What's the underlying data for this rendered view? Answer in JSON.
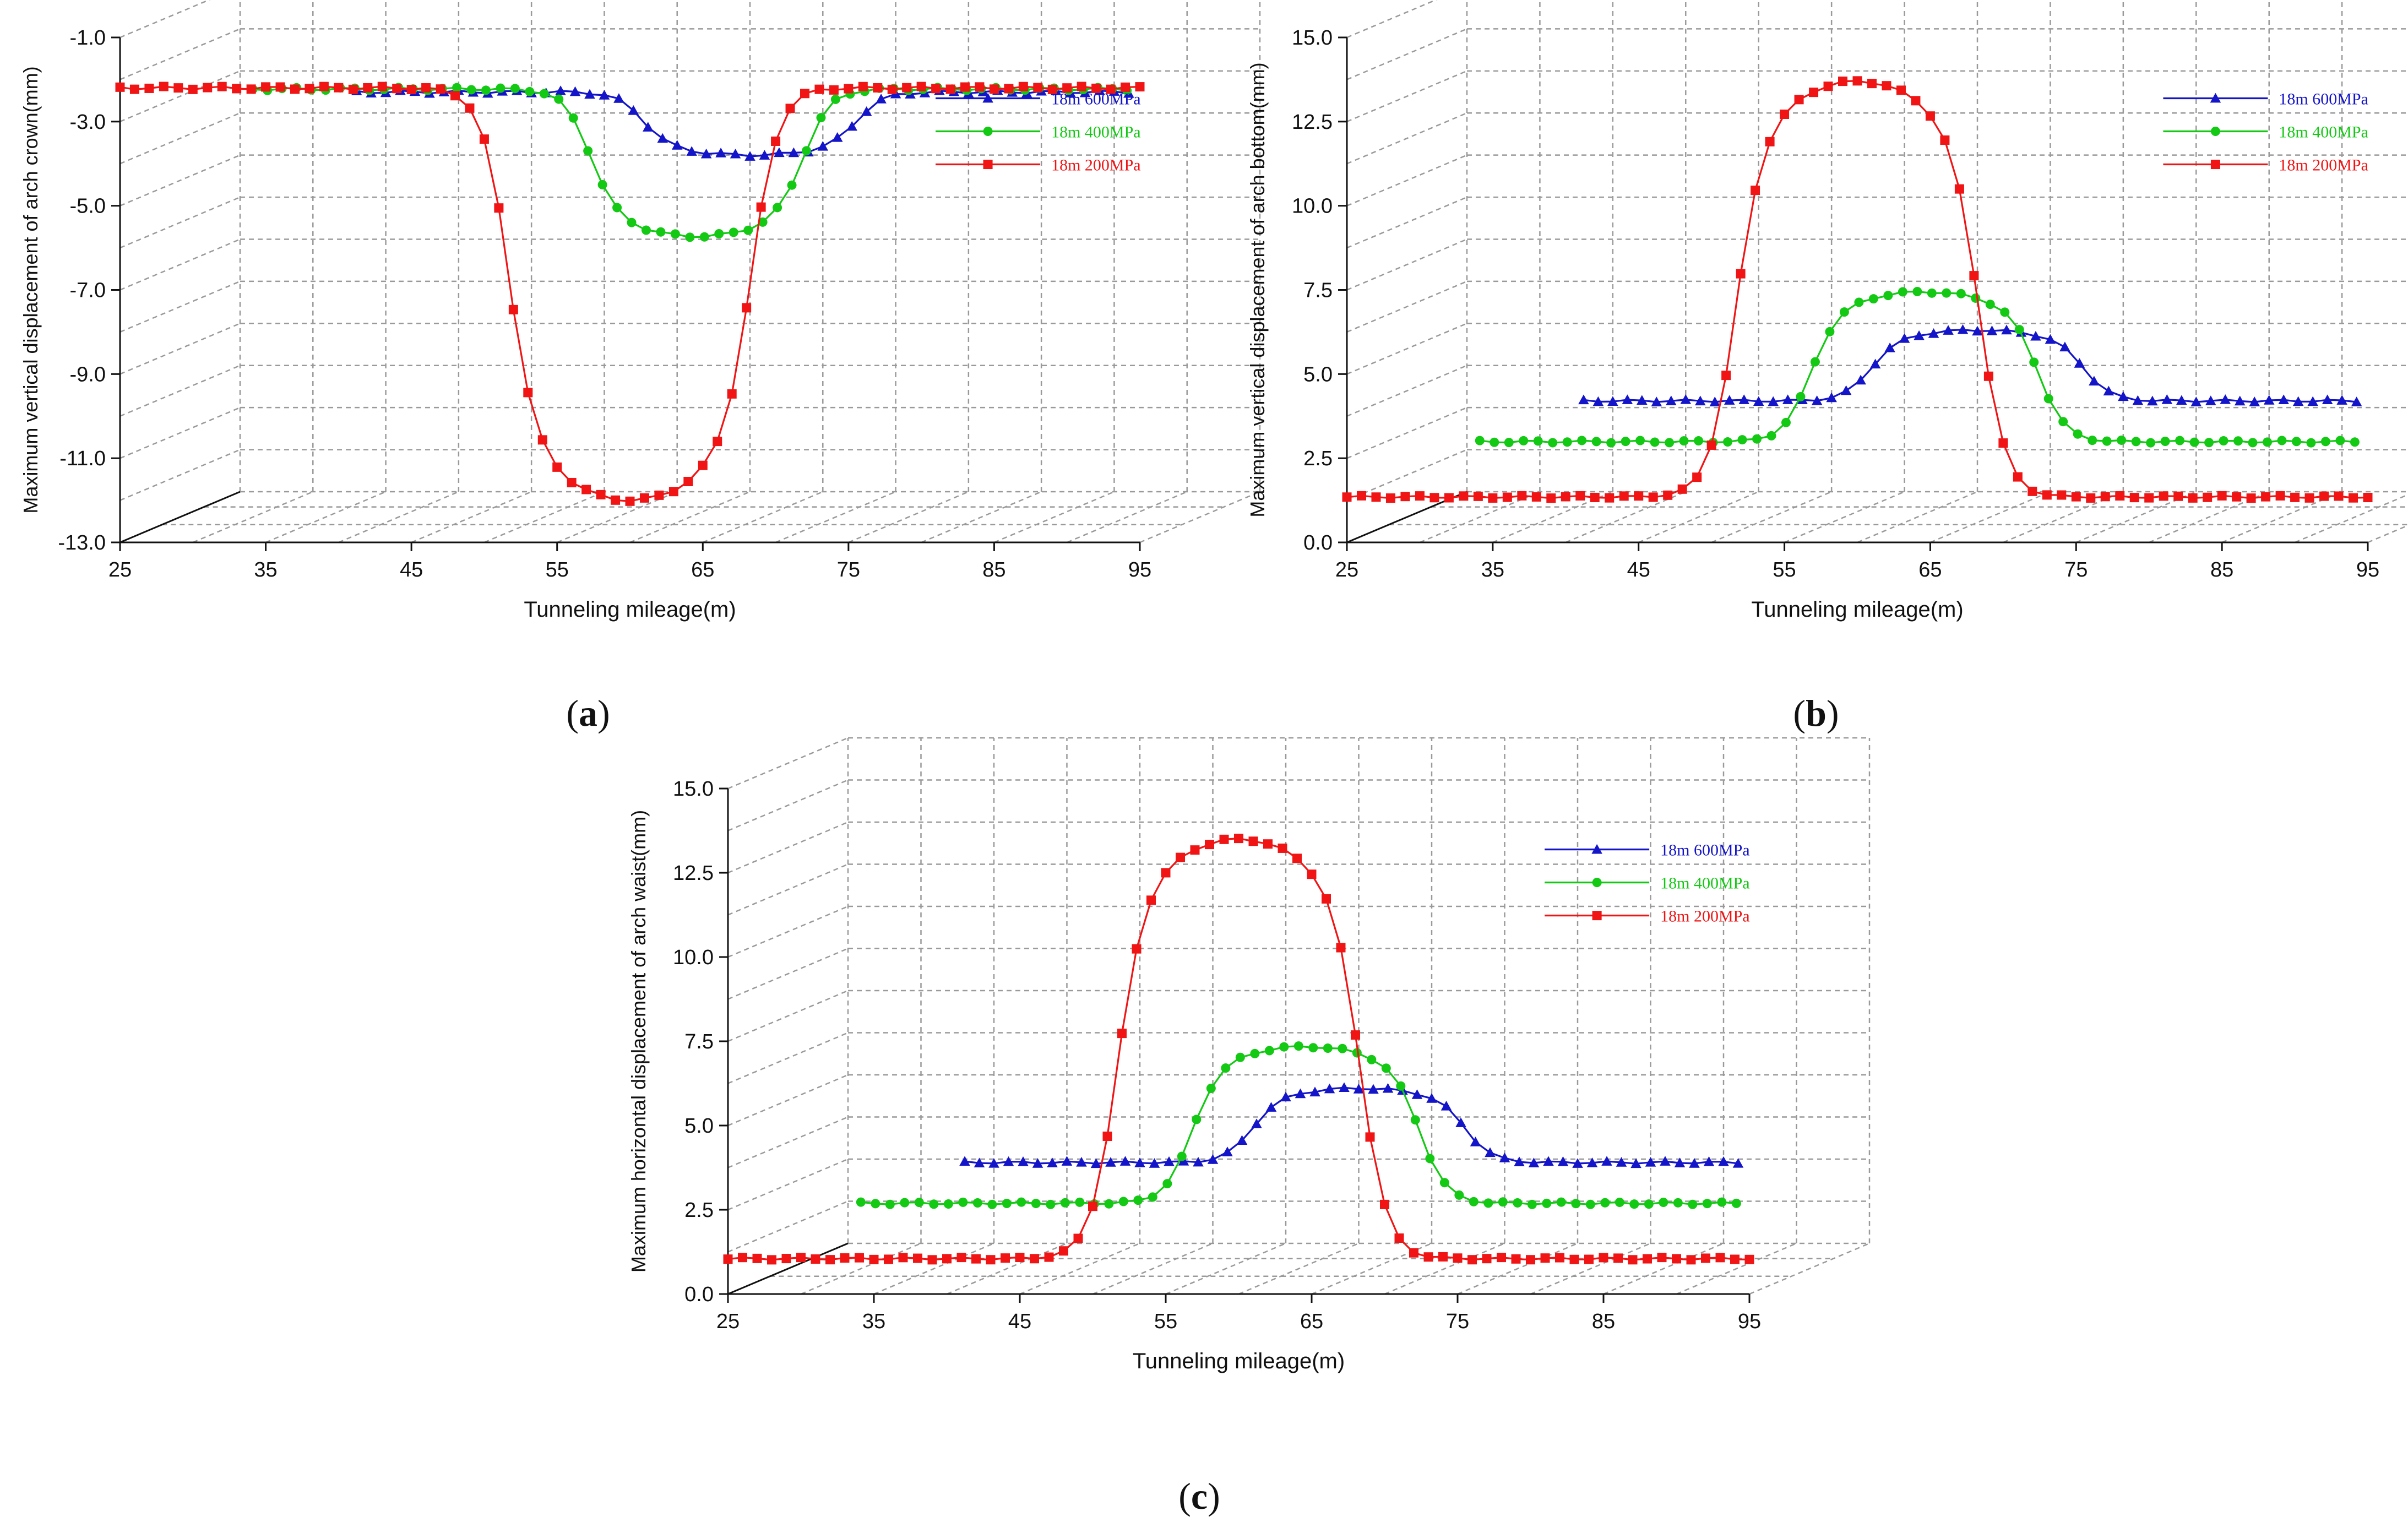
{
  "chart_data": [
    {
      "type": "line",
      "panel": "a",
      "caption_letter": "a",
      "caption": "(a)",
      "title": "",
      "xlabel": "Tunneling mileage(m)",
      "ylabel": "Maximum vertical displacement of arch crown(mm)",
      "xlim": [
        25,
        95
      ],
      "ylim": [
        -13.0,
        -1.0
      ],
      "xticks": [
        "25",
        "35",
        "45",
        "55",
        "65",
        "75",
        "85",
        "95"
      ],
      "yticks": [
        "-1.0",
        "-3.0",
        "-5.0",
        "-7.0",
        "-9.0",
        "-11.0",
        "-13.0"
      ],
      "ytick_values": [
        -1,
        -3,
        -5,
        -7,
        -9,
        -11,
        -13
      ],
      "legend_position": "right",
      "series": [
        {
          "name": "18m 600MPa",
          "color": "#1414c8",
          "marker": "triangle",
          "x_start": 33,
          "x_end": 86,
          "base": -3.5,
          "peak": -5.0,
          "center": 60,
          "width": 15
        },
        {
          "name": "18m 400MPa",
          "color": "#13c913",
          "marker": "circle",
          "x_start": 29.5,
          "x_end": 89.5,
          "base": -2.9,
          "peak": -6.4,
          "center": 60,
          "width": 15
        },
        {
          "name": "18m 200MPa",
          "color": "#f01414",
          "marker": "square",
          "x_start": 25,
          "x_end": 95,
          "base": -2.2,
          "peak": -12.0,
          "center": 60,
          "width": 17
        }
      ]
    },
    {
      "type": "line",
      "panel": "b",
      "caption_letter": "b",
      "caption": "(b)",
      "title": "",
      "xlabel": "Tunneling mileage(m)",
      "ylabel": "Maximum vertical displacement of arch bottom(mm)",
      "xlim": [
        25,
        95
      ],
      "ylim": [
        0.0,
        15.0
      ],
      "xticks": [
        "25",
        "35",
        "45",
        "55",
        "65",
        "75",
        "85",
        "95"
      ],
      "yticks": [
        "0.0",
        "2.5",
        "5.0",
        "7.5",
        "10.0",
        "12.5",
        "15.0"
      ],
      "ytick_values": [
        0,
        2.5,
        5,
        7.5,
        10,
        12.5,
        15
      ],
      "legend_position": "right",
      "series": [
        {
          "name": "18m 600MPa",
          "color": "#1414c8",
          "marker": "triangle",
          "x_start": 33,
          "x_end": 86,
          "base": 2.7,
          "peak": 4.8,
          "center": 60,
          "width": 15
        },
        {
          "name": "18m 400MPa",
          "color": "#13c913",
          "marker": "circle",
          "x_start": 29.5,
          "x_end": 89.5,
          "base": 2.15,
          "peak": 6.6,
          "center": 60,
          "width": 16
        },
        {
          "name": "18m 200MPa",
          "color": "#f01414",
          "marker": "square",
          "x_start": 25,
          "x_end": 95,
          "base": 1.35,
          "peak": 13.7,
          "center": 60,
          "width": 17
        }
      ]
    },
    {
      "type": "line",
      "panel": "c",
      "caption_letter": "c",
      "caption": "(c)",
      "title": "",
      "xlabel": "Tunneling mileage(m)",
      "ylabel": "Maximum horizontal displacement of arch waist(mm)",
      "xlim": [
        25,
        95
      ],
      "ylim": [
        0.0,
        15.0
      ],
      "xticks": [
        "25",
        "35",
        "45",
        "55",
        "65",
        "75",
        "85",
        "95"
      ],
      "yticks": [
        "0.0",
        "2.5",
        "5.0",
        "7.5",
        "10.0",
        "12.5",
        "15.0"
      ],
      "ytick_values": [
        0,
        2.5,
        5,
        7.5,
        10,
        12.5,
        15
      ],
      "legend_position": "right",
      "series": [
        {
          "name": "18m 600MPa",
          "color": "#1414c8",
          "marker": "triangle",
          "x_start": 33,
          "x_end": 86,
          "base": 2.4,
          "peak": 4.6,
          "center": 60,
          "width": 15
        },
        {
          "name": "18m 400MPa",
          "color": "#13c913",
          "marker": "circle",
          "x_start": 29.5,
          "x_end": 89.5,
          "base": 1.85,
          "peak": 6.5,
          "center": 60,
          "width": 16
        },
        {
          "name": "18m 200MPa",
          "color": "#f01414",
          "marker": "square",
          "x_start": 25,
          "x_end": 95,
          "base": 1.05,
          "peak": 13.5,
          "center": 60,
          "width": 17
        }
      ]
    }
  ]
}
